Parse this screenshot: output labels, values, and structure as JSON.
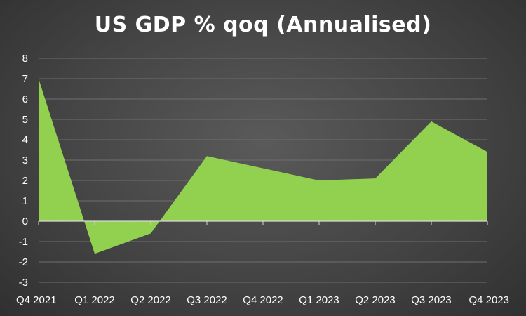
{
  "chart_data": {
    "type": "area",
    "title": "US GDP % qoq (Annualised)",
    "xlabel": "",
    "ylabel": "",
    "categories": [
      "Q4 2021",
      "Q1 2022",
      "Q2 2022",
      "Q3 2022",
      "Q4 2022",
      "Q1 2023",
      "Q2 2023",
      "Q3 2023",
      "Q4 2023"
    ],
    "series": [
      {
        "values": [
          7.0,
          -1.6,
          -0.6,
          3.2,
          2.6,
          2.0,
          2.1,
          4.9,
          3.4
        ]
      }
    ],
    "ylim": [
      -3,
      8
    ],
    "yticks": [
      8,
      7,
      6,
      5,
      4,
      3,
      2,
      1,
      0,
      -1,
      -2,
      -3
    ],
    "grid": true,
    "legend": "none",
    "colors": {
      "area_fill": "#92d050",
      "gridline": "#6e6e6e",
      "zero_axis": "#d9d9d9",
      "text": "#ffffff"
    }
  }
}
